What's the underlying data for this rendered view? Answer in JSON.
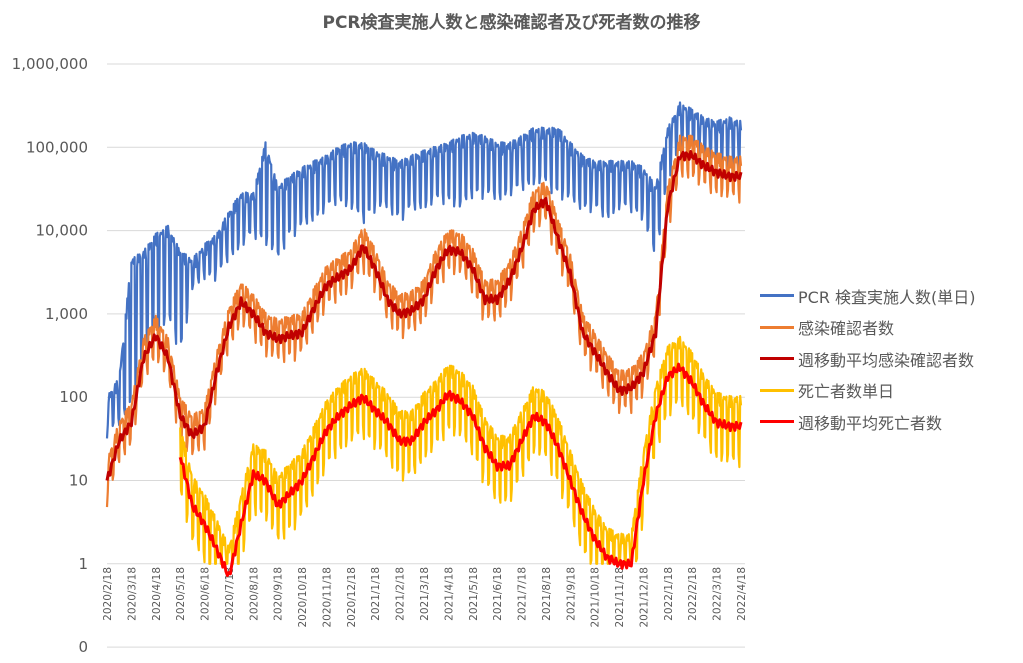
{
  "chart_data": {
    "type": "line",
    "title": "PCR検査実施人数と感染確認者及び死者数の推移",
    "yscale": "log",
    "ylim": [
      0.1,
      1000000
    ],
    "y_ticks": [
      0.1,
      1,
      10,
      100,
      1000,
      10000,
      100000,
      1000000
    ],
    "y_tick_labels": [
      "0",
      "1",
      "10",
      "100",
      "1,000",
      "10,000",
      "100,000",
      "1,000,000"
    ],
    "x_tick_labels": [
      "2020/2/18",
      "2020/3/18",
      "2020/4/18",
      "2020/5/18",
      "2020/6/18",
      "2020/7/18",
      "2020/8/18",
      "2020/9/18",
      "2020/10/18",
      "2020/11/18",
      "2020/12/18",
      "2021/1/18",
      "2021/2/18",
      "2021/3/18",
      "2021/4/18",
      "2021/5/18",
      "2021/6/18",
      "2021/7/18",
      "2021/8/18",
      "2021/9/18",
      "2021/10/18",
      "2021/11/18",
      "2021/12/18",
      "2022/1/18",
      "2022/2/18",
      "2022/3/18",
      "2022/4/18"
    ],
    "x_note": "values sampled twice monthly from 2020/2/18 to 2022/4/18",
    "grid": true,
    "legend": "right",
    "series": [
      {
        "name": "PCR 検査実施人数(単日)",
        "color": "#4472C4",
        "kind": "daily",
        "high": [
          90,
          150,
          4000,
          5000,
          8000,
          10000,
          5000,
          4000,
          6000,
          8000,
          15000,
          25000,
          25000,
          100000,
          30000,
          40000,
          50000,
          60000,
          70000,
          90000,
          100000,
          100000,
          80000,
          70000,
          60000,
          70000,
          80000,
          90000,
          100000,
          120000,
          130000,
          120000,
          100000,
          100000,
          120000,
          150000,
          150000,
          150000,
          100000,
          70000,
          60000,
          60000,
          60000,
          60000,
          50000,
          30000,
          150000,
          300000,
          250000,
          200000,
          180000,
          200000,
          180000
        ],
        "low": [
          40,
          50,
          100,
          300,
          500,
          1000,
          400,
          2000,
          3000,
          3000,
          5000,
          7000,
          10000,
          8000,
          5000,
          10000,
          12000,
          15000,
          20000,
          25000,
          20000,
          15000,
          20000,
          20000,
          15000,
          20000,
          20000,
          25000,
          25000,
          20000,
          30000,
          30000,
          25000,
          30000,
          35000,
          40000,
          40000,
          30000,
          25000,
          20000,
          20000,
          15000,
          20000,
          20000,
          15000,
          5000,
          50000,
          100000,
          80000,
          70000,
          60000,
          50000,
          60000
        ]
      },
      {
        "name": "感染確認者数",
        "color": "#ED7D31",
        "kind": "daily",
        "base": "週移動平均感染確認者数",
        "spread": [
          1.5,
          0.6
        ]
      },
      {
        "name": "週移動平均感染確認者数",
        "color": "#C00000",
        "kind": "ma",
        "values": [
          10,
          30,
          50,
          300,
          550,
          300,
          60,
          35,
          45,
          200,
          700,
          1400,
          1000,
          600,
          500,
          550,
          600,
          1200,
          2200,
          2800,
          3500,
          6500,
          3500,
          1500,
          1000,
          1100,
          1500,
          3500,
          6000,
          5500,
          3500,
          1500,
          1500,
          2500,
          6000,
          18000,
          23000,
          8000,
          3000,
          600,
          350,
          200,
          120,
          130,
          200,
          600,
          20000,
          80000,
          80000,
          60000,
          50000,
          45000,
          45000
        ]
      },
      {
        "name": "死亡者数単日",
        "color": "#FFC000",
        "kind": "daily",
        "base": "週移動平均死亡者数",
        "spread": [
          2.0,
          0.4
        ]
      },
      {
        "name": "週移動平均死亡者数",
        "color": "#FF0000",
        "kind": "ma",
        "values": [
          null,
          null,
          null,
          null,
          null,
          null,
          20,
          5,
          3,
          1.5,
          0.7,
          3,
          12,
          10,
          5,
          7,
          10,
          20,
          40,
          60,
          80,
          100,
          70,
          50,
          30,
          30,
          50,
          70,
          110,
          90,
          60,
          25,
          15,
          15,
          30,
          60,
          50,
          25,
          10,
          4,
          2,
          1.2,
          1.0,
          1.0,
          10,
          60,
          180,
          230,
          150,
          80,
          50,
          45,
          45
        ]
      }
    ]
  }
}
